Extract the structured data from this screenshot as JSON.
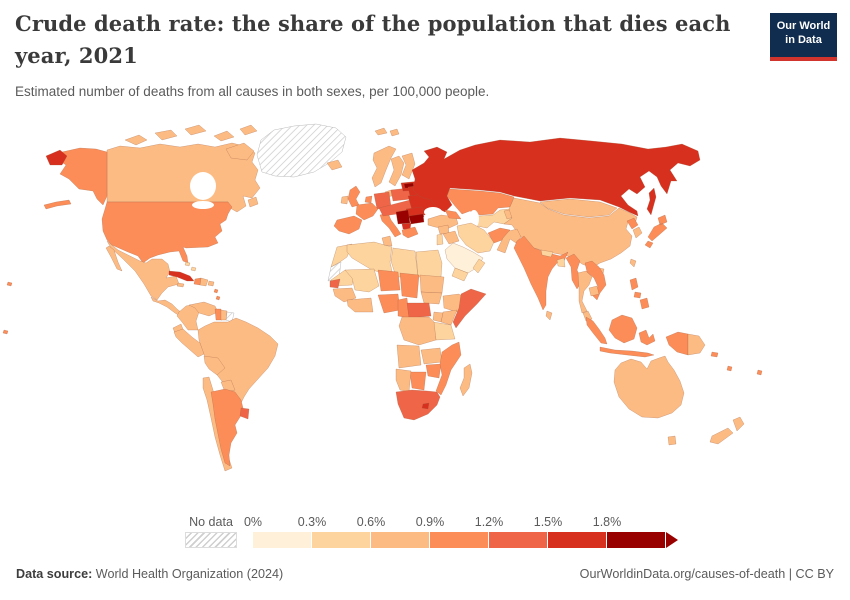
{
  "header": {
    "title": "Crude death rate: the share of the population that dies each year, 2021",
    "subtitle": "Estimated number of deaths from all causes in both sexes, per 100,000 people.",
    "logo_line1": "Our World",
    "logo_line2": "in Data",
    "logo_bg": "#102d50",
    "logo_accent": "#d0342c"
  },
  "legend": {
    "no_data_label": "No data",
    "tick_labels": [
      "0%",
      "0.3%",
      "0.6%",
      "0.9%",
      "1.2%",
      "1.5%",
      "1.8%"
    ],
    "bin_colors": [
      "#fef0d9",
      "#fdd49e",
      "#fdbb84",
      "#fc8d59",
      "#ef6548",
      "#d7301f",
      "#990000"
    ]
  },
  "footer": {
    "source_label": "Data source:",
    "source_text": " World Health Organization (2024)",
    "right_text": "OurWorldinData.org/causes-of-death | CC BY"
  },
  "chart_data": {
    "type": "choropleth",
    "title": "Crude death rate: the share of the population that dies each year, 2021",
    "subtitle": "Estimated number of deaths from all causes in both sexes, per 100,000 people.",
    "unit": "%",
    "legend_position": "bottom",
    "bins": [
      {
        "range": "0-0.3%",
        "color": "#fef0d9"
      },
      {
        "range": "0.3-0.6%",
        "color": "#fdd49e"
      },
      {
        "range": "0.6-0.9%",
        "color": "#fdbb84"
      },
      {
        "range": "0.9-1.2%",
        "color": "#fc8d59"
      },
      {
        "range": "1.2-1.5%",
        "color": "#ef6548"
      },
      {
        "range": "1.5-1.8%",
        "color": "#d7301f"
      },
      {
        "range": "1.8%+",
        "color": "#990000"
      }
    ],
    "no_data_label": "No data",
    "regions": {
      "greenland": "nodata",
      "western-sahara": "nodata",
      "french-guiana": "nodata",
      "canada": 2,
      "arctic-islands": 2,
      "newfoundland": 2,
      "alaska": 3,
      "aleutians": 3,
      "chukotka-west": 5,
      "usa": 3,
      "mexico": 2,
      "baja": 2,
      "central-america": 2,
      "cuba": 5,
      "haiti": 3,
      "dominican-republic": 2,
      "jamaica": 2,
      "puerto-rico": 2,
      "bahamas": 1,
      "lesser-antilles": 3,
      "colombia": 2,
      "venezuela": 2,
      "guyana": 3,
      "suriname": 2,
      "brazil": 2,
      "ecuador": 2,
      "peru": 2,
      "bolivia": 2,
      "paraguay": 2,
      "chile": 2,
      "argentina": 3,
      "uruguay": 4,
      "iceland": 2,
      "svalbard": 2,
      "norway": 2,
      "sweden": 2,
      "finland": 2,
      "denmark": 2,
      "uk": 3,
      "ireland": 2,
      "benelux": 3,
      "germany": 4,
      "france": 3,
      "iberia": 3,
      "italy": 3,
      "poland": 4,
      "central-europe": 4,
      "baltics": 5,
      "latvia": 6,
      "belarus": 5,
      "ukraine": 5,
      "romania": 5,
      "serbia": 6,
      "bulgaria": 6,
      "albania-macedonia": 5,
      "greece": 3,
      "russia": 5,
      "sakhalin": 5,
      "kazakhstan": 3,
      "central-asia": 1,
      "kyrgyz-tajik": 2,
      "mongolia": 2,
      "china": 2,
      "taiwan": 2,
      "hainan": 2,
      "north-korea": 3,
      "south-korea": 2,
      "japan": 3,
      "turkey": 2,
      "caucasus": 3,
      "syria": 2,
      "iraq": 2,
      "iran": 1,
      "jordan": 1,
      "saudi-arabia": 0,
      "yemen": 1,
      "oman": 1,
      "afghanistan": 3,
      "pakistan": 2,
      "india": 3,
      "nepal": 1,
      "bangladesh": 1,
      "sri-lanka": 2,
      "myanmar": 3,
      "thailand": 2,
      "laos-vietnam": 3,
      "cambodia": 2,
      "malaysia": 2,
      "sumatra": 3,
      "java": 3,
      "borneo": 3,
      "sulawesi": 3,
      "new-guinea-west": 3,
      "papua-new-guinea": 2,
      "philippines": 3,
      "morocco": 1,
      "algeria": 1,
      "tunisia": 2,
      "libya": 1,
      "egypt": 1,
      "mauritania": 1,
      "mali": 1,
      "niger": 3,
      "chad": 3,
      "sudan": 2,
      "south-sudan": 2,
      "senegal": 4,
      "guinea": 2,
      "ivory-ghana": 2,
      "nigeria": 3,
      "cameroon": 3,
      "central-african-republic": 4,
      "ethiopia": 2,
      "somalia": 4,
      "kenya": 2,
      "uganda": 2,
      "tanzania": 1,
      "drc": 2,
      "angola": 2,
      "zambia": 2,
      "zimbabwe": 3,
      "mozambique": 3,
      "botswana": 3,
      "namibia": 2,
      "south-africa": 4,
      "lesotho": 5,
      "madagascar": 2,
      "australia": 2,
      "tasmania": 2,
      "new-zealand-north": 2,
      "new-zealand-south": 2,
      "fiji": 3,
      "solomon-islands": 3,
      "vanuatu": 3,
      "pacific-islands": 3
    }
  }
}
